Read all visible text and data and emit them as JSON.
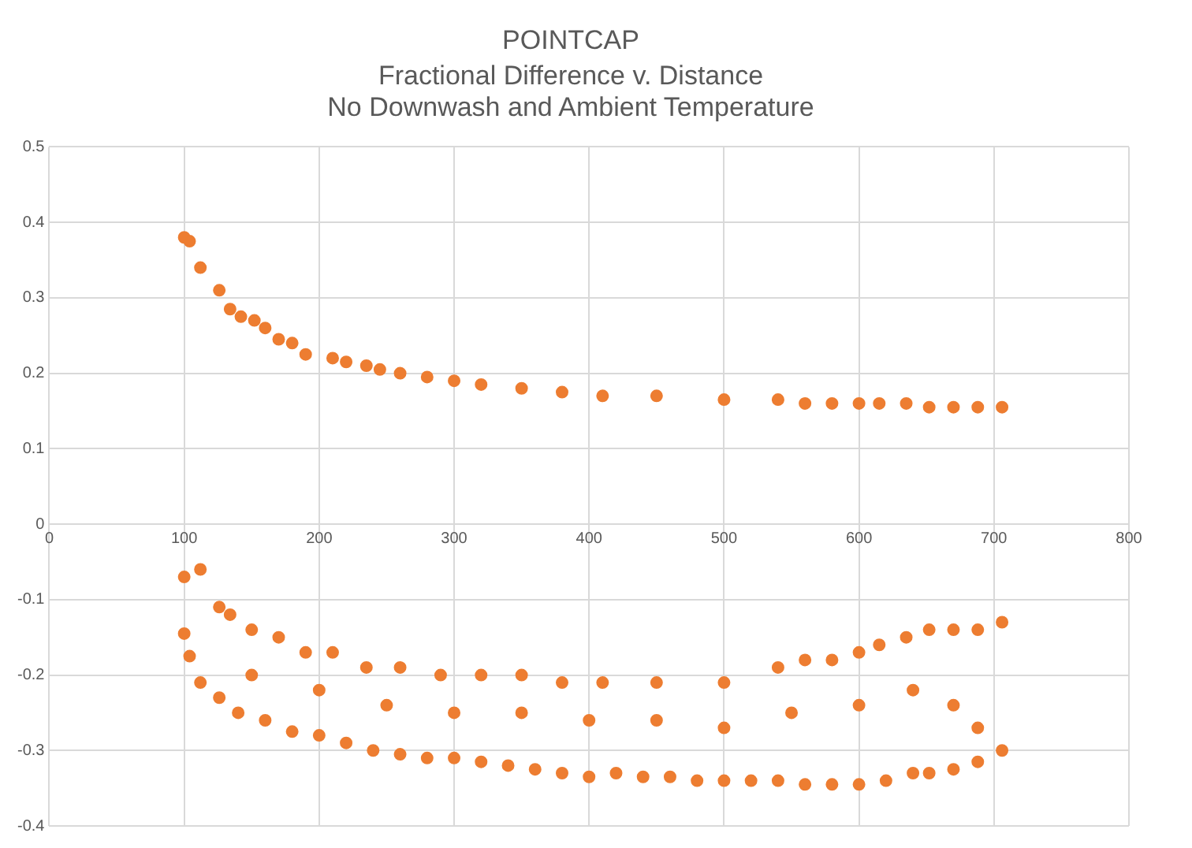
{
  "chart_data": {
    "type": "scatter",
    "title": "POINTCAP",
    "subtitle": "Fractional Difference v. Distance\nNo Downwash and Ambient Temperature",
    "x": [
      100,
      104,
      112,
      126,
      134,
      142,
      152,
      160,
      170,
      180,
      190,
      210,
      220,
      235,
      245,
      260,
      280,
      300,
      320,
      350,
      380,
      410,
      450,
      500,
      540,
      560,
      580,
      600,
      615,
      635,
      652,
      670,
      688,
      706,
      100,
      112,
      126,
      134,
      150,
      170,
      190,
      210,
      235,
      260,
      290,
      320,
      350,
      380,
      410,
      450,
      500,
      540,
      560,
      580,
      600,
      615,
      635,
      652,
      670,
      688,
      706,
      100,
      104,
      112,
      126,
      140,
      160,
      180,
      200,
      220,
      240,
      260,
      280,
      300,
      320,
      340,
      360,
      380,
      400,
      420,
      440,
      460,
      480,
      500,
      520,
      540,
      560,
      580,
      600,
      620,
      640,
      652,
      670,
      688,
      706,
      150,
      200,
      250,
      300,
      350,
      400,
      450,
      500,
      550,
      600,
      640,
      670,
      688
    ],
    "values": [
      0.38,
      0.375,
      0.34,
      0.31,
      0.285,
      0.275,
      0.27,
      0.26,
      0.245,
      0.24,
      0.225,
      0.22,
      0.215,
      0.21,
      0.205,
      0.2,
      0.195,
      0.19,
      0.185,
      0.18,
      0.175,
      0.17,
      0.17,
      0.165,
      0.165,
      0.16,
      0.16,
      0.16,
      0.16,
      0.16,
      0.155,
      0.155,
      0.155,
      0.155,
      -0.07,
      -0.06,
      -0.11,
      -0.12,
      -0.14,
      -0.15,
      -0.17,
      -0.17,
      -0.19,
      -0.19,
      -0.2,
      -0.2,
      -0.2,
      -0.21,
      -0.21,
      -0.21,
      -0.21,
      -0.19,
      -0.18,
      -0.18,
      -0.17,
      -0.16,
      -0.15,
      -0.14,
      -0.14,
      -0.14,
      -0.13,
      -0.145,
      -0.175,
      -0.21,
      -0.23,
      -0.25,
      -0.26,
      -0.275,
      -0.28,
      -0.29,
      -0.3,
      -0.305,
      -0.31,
      -0.31,
      -0.315,
      -0.32,
      -0.325,
      -0.33,
      -0.335,
      -0.33,
      -0.335,
      -0.335,
      -0.34,
      -0.34,
      -0.34,
      -0.34,
      -0.345,
      -0.345,
      -0.345,
      -0.34,
      -0.33,
      -0.33,
      -0.325,
      -0.315,
      -0.3,
      -0.2,
      -0.22,
      -0.24,
      -0.25,
      -0.25,
      -0.26,
      -0.26,
      -0.27,
      -0.25,
      -0.24,
      -0.22,
      -0.24,
      -0.27
    ],
    "color": "#ed7d31",
    "marker": "circle",
    "xlim": [
      0,
      800
    ],
    "xticks": [
      0,
      100,
      200,
      300,
      400,
      500,
      600,
      700,
      800
    ],
    "ylim": [
      -0.4,
      0.5
    ],
    "yticks": [
      -0.4,
      -0.3,
      -0.2,
      -0.1,
      0,
      0.1,
      0.2,
      0.3,
      0.4,
      0.5
    ],
    "grid": true,
    "legend": false
  }
}
